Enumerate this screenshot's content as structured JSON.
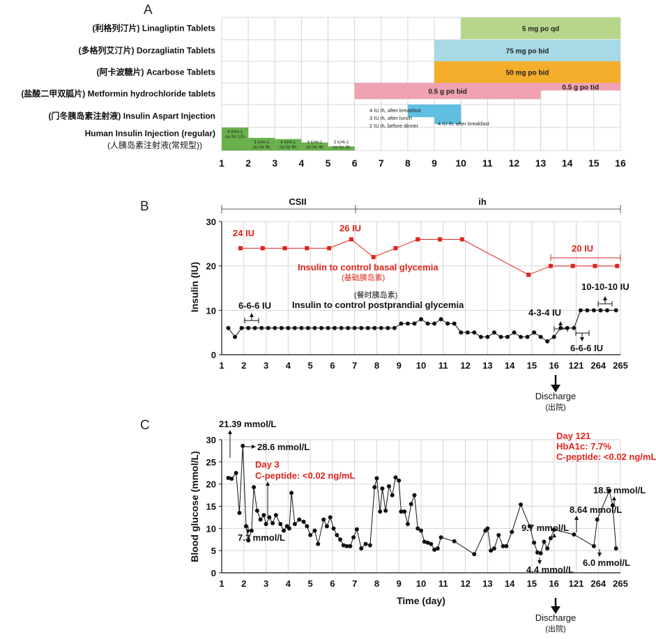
{
  "colors": {
    "linagliptin": "#b6d689",
    "dorzagliatin": "#a7d9e6",
    "acarbose": "#f5ad2c",
    "metformin": "#f0a2b2",
    "insulin_aspart": "#5fbfe0",
    "human_insulin": "#6ab04c",
    "grid": "#d4d4d4",
    "basal_line": "#e0231c",
    "bolus_line": "#111111",
    "glucose_line": "#111111",
    "accent_text": "#e0231c"
  },
  "panelA": {
    "letter": "A",
    "x_ticks": [
      "1",
      "2",
      "3",
      "4",
      "5",
      "6",
      "7",
      "8",
      "9",
      "10",
      "11",
      "12",
      "13",
      "14",
      "15",
      "16"
    ],
    "rows": [
      {
        "label": "(利格列汀片) Linagliptin Tablets"
      },
      {
        "label": "(多格列艾汀片) Dorzagliatin Tablets"
      },
      {
        "label": "(阿卡波糖片) Acarbose Tablets"
      },
      {
        "label": "(盐酸二甲双胍片) Metformin hydrochloride tablets"
      },
      {
        "label": "(门冬胰岛素注射液) Insulin Aspart Injection"
      },
      {
        "label": "Human Insulin Injection (regular)",
        "label2": "(人胰岛素注射液(常规型))"
      }
    ],
    "bars": [
      {
        "row": 0,
        "start": 10,
        "end": 16,
        "label": "5 mg po qd",
        "color": "#b6d689"
      },
      {
        "row": 1,
        "start": 9,
        "end": 16,
        "label": "75 mg po bid",
        "color": "#a7d9e6"
      },
      {
        "row": 2,
        "start": 9,
        "end": 16,
        "label": "50 mg po bid",
        "color": "#f5ad2c"
      },
      {
        "row": 3,
        "start": 6,
        "end": 13,
        "label": "0.5 g po bid",
        "color": "#f0a2b2",
        "frac": 0.75
      },
      {
        "row": 3,
        "start": 13,
        "end": 16,
        "label": "0.5 g po tid",
        "color": "#f0a2b2",
        "frac": 0.35
      },
      {
        "row": 4,
        "start": 8,
        "end": 9,
        "label": "",
        "color": "#5fbfe0",
        "frac": 0.55
      },
      {
        "row": 4,
        "start": 9,
        "end": 10,
        "label": "",
        "color": "#5fbfe0",
        "frac": 0.85
      }
    ],
    "aspart_text": [
      "4 IU ih, after breakfast",
      "3 IU ih, after lunch",
      "2 IU ih, before dinner"
    ],
    "aspart_after": "4 IU ih, after breakfast",
    "human_insulin_steps": [
      {
        "start": 1,
        "end": 2,
        "label1": "4 IU•h-1",
        "label2": "civ for 12h",
        "frac": 1.0
      },
      {
        "start": 2,
        "end": 3,
        "label1": "3 IU•h-1",
        "label2": "civ for 9h",
        "frac": 0.55
      },
      {
        "start": 3,
        "end": 4,
        "label1": "4 IU•h-1",
        "label2": "civ for 6h",
        "frac": 0.5
      },
      {
        "start": 4,
        "end": 5,
        "label1": "4 IU•h-1",
        "label2": "civ for 4h",
        "frac": 0.35
      },
      {
        "start": 5,
        "end": 6,
        "label1": "3 IU•h-1",
        "label2": "civ for 2h",
        "frac": 0.18
      }
    ]
  },
  "chart_data": [
    {
      "type": "line",
      "title": "B",
      "xlabel": "",
      "ylabel": "Insulin (IU)",
      "ylim": [
        0,
        30
      ],
      "y_ticks": [
        0,
        10,
        20,
        30
      ],
      "x_tick_labels": [
        "1",
        "2",
        "3",
        "4",
        "5",
        "6",
        "7",
        "8",
        "9",
        "10",
        "11",
        "12",
        "13",
        "14",
        "15",
        "16",
        "121",
        "264",
        "265"
      ],
      "phase_labels": [
        "CSII",
        "ih"
      ],
      "series": [
        {
          "name": "Insulin to control basal glycemia",
          "name_cn": "(基础胰岛素)",
          "x": [
            1.85,
            2.85,
            3.85,
            4.85,
            5.85,
            6.85,
            7.85,
            8.85,
            9.85,
            10.85,
            11.85,
            14.85,
            15.85,
            16.85,
            17.85,
            18.85
          ],
          "y": [
            24,
            24,
            24,
            24,
            24,
            26,
            22,
            24,
            26,
            26,
            26,
            18,
            20,
            20,
            20,
            20
          ]
        },
        {
          "name": "Insulin to control postprandial glycemia",
          "name_cn": "(餐时胰岛素)",
          "x": [
            1.3,
            1.6,
            1.9,
            2.2,
            2.5,
            2.8,
            3.1,
            3.4,
            3.7,
            4.0,
            4.3,
            4.6,
            4.9,
            5.2,
            5.5,
            5.8,
            6.1,
            6.4,
            6.7,
            7.0,
            7.3,
            7.6,
            7.9,
            8.2,
            8.5,
            8.8,
            9.1,
            9.4,
            9.7,
            10.0,
            10.3,
            10.6,
            10.9,
            11.2,
            11.5,
            11.8,
            12.1,
            12.4,
            12.7,
            13.0,
            13.3,
            13.6,
            13.9,
            14.2,
            14.5,
            14.8,
            15.1,
            15.4,
            15.7,
            16.0,
            16.3,
            16.6,
            16.9,
            17.2,
            17.5,
            17.8,
            18.1,
            18.4,
            18.8
          ],
          "y": [
            6,
            4,
            6,
            6,
            6,
            6,
            6,
            6,
            6,
            6,
            6,
            6,
            6,
            6,
            6,
            6,
            6,
            6,
            6,
            6,
            6,
            6,
            6,
            6,
            6,
            6,
            7,
            7,
            7,
            8,
            7,
            7,
            8,
            7,
            7,
            5,
            5,
            5,
            4,
            4,
            5,
            4,
            4,
            5,
            4,
            4,
            5,
            4,
            3,
            4,
            6,
            6,
            6,
            10,
            10,
            10,
            10,
            10,
            10
          ]
        }
      ],
      "annotations": [
        "24 IU",
        "26 IU",
        "20 IU",
        "6-6-6 IU",
        "4-3-4 IU",
        "6-6-6 IU",
        "10-10-10 IU"
      ],
      "discharge": "Discharge",
      "discharge_cn": "(出院)"
    },
    {
      "type": "line",
      "title": "C",
      "xlabel": "Time (day)",
      "ylabel": "Blood glucose (mmol/L)",
      "ylim": [
        0,
        30
      ],
      "y_ticks": [
        0,
        5,
        10,
        15,
        20,
        25,
        30
      ],
      "x_tick_labels": [
        "1",
        "2",
        "3",
        "4",
        "5",
        "6",
        "7",
        "8",
        "9",
        "10",
        "11",
        "12",
        "13",
        "14",
        "15",
        "16",
        "121",
        "264",
        "265"
      ],
      "series": [
        {
          "name": "Blood glucose",
          "x": [
            1.3,
            1.45,
            1.65,
            1.8,
            1.95,
            2.1,
            2.2,
            2.35,
            2.45,
            2.6,
            2.75,
            2.9,
            3.0,
            3.15,
            3.3,
            3.45,
            3.65,
            3.8,
            3.95,
            4.05,
            4.15,
            4.3,
            4.5,
            4.7,
            4.85,
            5.0,
            5.2,
            5.35,
            5.6,
            5.75,
            5.9,
            6.05,
            6.2,
            6.35,
            6.5,
            6.65,
            6.8,
            6.95,
            7.1,
            7.3,
            7.5,
            7.7,
            7.9,
            8.0,
            8.15,
            8.25,
            8.4,
            8.55,
            8.7,
            8.85,
            9.0,
            9.1,
            9.25,
            9.4,
            9.55,
            9.7,
            9.85,
            10.0,
            10.15,
            10.3,
            10.45,
            10.6,
            10.75,
            10.9,
            11.5,
            12.4,
            12.9,
            13.0,
            13.15,
            13.3,
            13.5,
            13.7,
            13.85,
            14.1,
            14.5,
            14.9,
            15.1,
            15.25,
            15.4,
            15.55,
            15.7,
            15.85,
            16.0,
            16.9,
            17.8,
            17.95,
            18.5,
            18.65,
            18.8
          ],
          "y": [
            21.39,
            21.2,
            22.5,
            13.5,
            28.6,
            10.5,
            7.3,
            9.5,
            19.3,
            14.0,
            12.0,
            13.0,
            11.0,
            12.5,
            11.2,
            13.0,
            11.0,
            9.5,
            10.5,
            10.0,
            18.0,
            11.0,
            12.0,
            11.5,
            10.5,
            8.5,
            9.5,
            6.5,
            12.0,
            10.5,
            12.5,
            10.0,
            8.5,
            7.5,
            6.2,
            6.0,
            6.0,
            8.0,
            9.8,
            5.5,
            6.5,
            6.2,
            19.3,
            21.3,
            13.8,
            19.0,
            14.0,
            19.5,
            17.5,
            21.5,
            20.8,
            13.8,
            13.8,
            11.0,
            15.5,
            17.5,
            10.0,
            9.5,
            7.0,
            6.8,
            6.5,
            5.2,
            5.5,
            8.0,
            7.1,
            4.2,
            9.5,
            10.0,
            5.0,
            5.5,
            8.5,
            6.0,
            6.0,
            9.2,
            15.4,
            10.5,
            6.8,
            4.6,
            4.4,
            7.0,
            5.5,
            7.8,
            9.7,
            8.64,
            6.0,
            12.0,
            18.5,
            15.2,
            5.5
          ]
        }
      ],
      "annotations": [
        "21.39 mmol/L",
        "28.6 mmol/L",
        "7.3 mmol/L",
        "9.7 mmol/L",
        "4.4 mmol/L",
        "8.64 mmol/L",
        "6.0 mmol/L",
        "18.5 mmol/L"
      ],
      "red_notes": [
        "Day 3",
        "C-peptide: <0.02 ng/mL",
        "Day 121",
        "HbA1c: 7.7%",
        "C-peptide: <0.02 ng/mL"
      ],
      "discharge": "Discharge",
      "discharge_cn": "(出院)"
    }
  ]
}
